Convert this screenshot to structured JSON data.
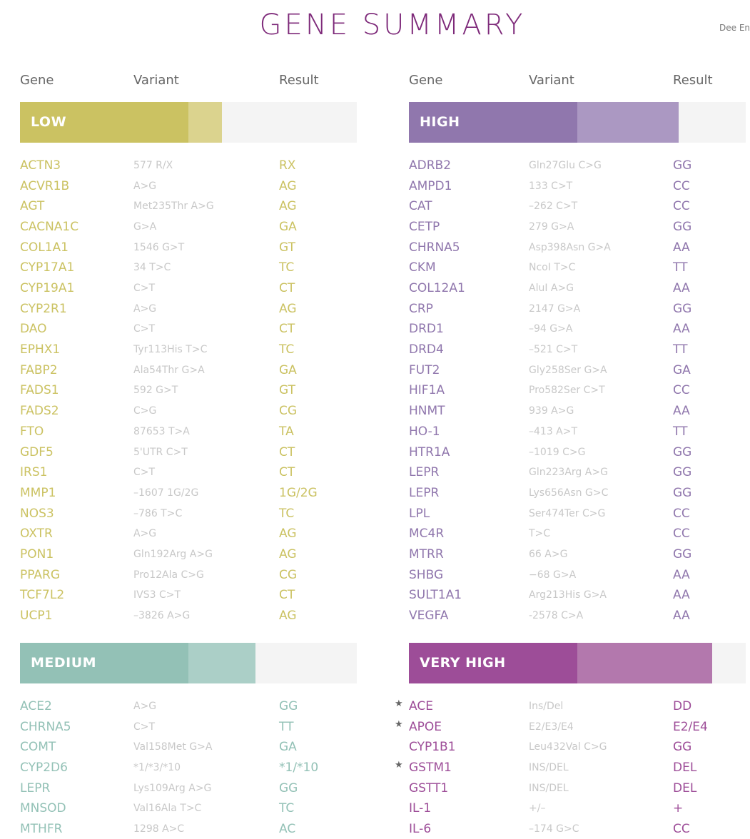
{
  "title": "GENE SUMMARY",
  "author": "Dee En",
  "headers": {
    "gene": "Gene",
    "variant": "Variant",
    "result": "Result"
  },
  "sections": [
    {
      "key": "low",
      "label": "LOW",
      "color": "#cbc262",
      "light": "#dbd38e",
      "level": 0.5,
      "level_light": 0.6,
      "rows": [
        [
          "ACTN3",
          "577 R/X",
          "RX"
        ],
        [
          "ACVR1B",
          "A>G",
          "AG"
        ],
        [
          "AGT",
          "Met235Thr A>G",
          "AG"
        ],
        [
          "CACNA1C",
          "G>A",
          "GA"
        ],
        [
          "COL1A1",
          "1546 G>T",
          "GT"
        ],
        [
          "CYP17A1",
          "34 T>C",
          "TC"
        ],
        [
          "CYP19A1",
          "C>T",
          "CT"
        ],
        [
          "CYP2R1",
          "A>G",
          "AG"
        ],
        [
          "DAO",
          "C>T",
          "CT"
        ],
        [
          "EPHX1",
          "Tyr113His T>C",
          "TC"
        ],
        [
          "FABP2",
          "Ala54Thr G>A",
          "GA"
        ],
        [
          "FADS1",
          "592 G>T",
          "GT"
        ],
        [
          "FADS2",
          "C>G",
          "CG"
        ],
        [
          "FTO",
          "87653 T>A",
          "TA"
        ],
        [
          "GDF5",
          "5'UTR C>T",
          "CT"
        ],
        [
          "IRS1",
          "C>T",
          "CT"
        ],
        [
          "MMP1",
          "–1607 1G/2G",
          "1G/2G"
        ],
        [
          "NOS3",
          "–786 T>C",
          "TC"
        ],
        [
          "OXTR",
          "A>G",
          "AG"
        ],
        [
          "PON1",
          "Gln192Arg A>G",
          "AG"
        ],
        [
          "PPARG",
          "Pro12Ala C>G",
          "CG"
        ],
        [
          "TCF7L2",
          "IVS3 C>T",
          "CT"
        ],
        [
          "UCP1",
          "–3826 A>G",
          "AG"
        ]
      ]
    },
    {
      "key": "high",
      "label": "HIGH",
      "color": "#9077ad",
      "light": "#ab98c2",
      "level": 0.5,
      "level_light": 0.8,
      "rows": [
        [
          "ADRB2",
          "Gln27Glu C>G",
          "GG"
        ],
        [
          "AMPD1",
          "133 C>T",
          "CC"
        ],
        [
          "CAT",
          "–262 C>T",
          "CC"
        ],
        [
          "CETP",
          "279 G>A",
          "GG"
        ],
        [
          "CHRNA5",
          "Asp398Asn G>A",
          "AA"
        ],
        [
          "CKM",
          "NcoI T>C",
          "TT"
        ],
        [
          "COL12A1",
          "AluI A>G",
          "AA"
        ],
        [
          "CRP",
          "2147 G>A",
          "GG"
        ],
        [
          "DRD1",
          "–94 G>A",
          "AA"
        ],
        [
          "DRD4",
          "–521 C>T",
          "TT"
        ],
        [
          "FUT2",
          "Gly258Ser G>A",
          "GA"
        ],
        [
          "HIF1A",
          "Pro582Ser C>T",
          "CC"
        ],
        [
          "HNMT",
          "939 A>G",
          "AA"
        ],
        [
          "HO-1",
          "–413 A>T",
          "TT"
        ],
        [
          "HTR1A",
          "–1019 C>G",
          "GG"
        ],
        [
          "LEPR",
          "Gln223Arg A>G",
          "GG"
        ],
        [
          "LEPR",
          "Lys656Asn G>C",
          "GG"
        ],
        [
          "LPL",
          "Ser474Ter C>G",
          "CC"
        ],
        [
          "MC4R",
          "T>C",
          "CC"
        ],
        [
          "MTRR",
          "66 A>G",
          "GG"
        ],
        [
          "SHBG",
          "−68 G>A",
          "AA"
        ],
        [
          "SULT1A1",
          "Arg213His G>A",
          "AA"
        ],
        [
          "VEGFA",
          "-2578 C>A",
          "AA"
        ]
      ]
    },
    {
      "key": "medium",
      "label": "MEDIUM",
      "color": "#93c1b6",
      "light": "#abcfc7",
      "level": 0.5,
      "level_light": 0.7,
      "rows": [
        [
          "ACE2",
          "A>G",
          "GG"
        ],
        [
          "CHRNA5",
          "C>T",
          "TT"
        ],
        [
          "COMT",
          "Val158Met G>A",
          "GA"
        ],
        [
          "CYP2D6",
          "*1/*3/*10",
          "*1/*10"
        ],
        [
          "LEPR",
          "Lys109Arg A>G",
          "GG"
        ],
        [
          "MNSOD",
          "Val16Ala T>C",
          "TC"
        ],
        [
          "MTHFR",
          "1298 A>C",
          "AC"
        ]
      ]
    },
    {
      "key": "very_high",
      "label": "VERY HIGH",
      "color": "#9d4d98",
      "light": "#b378ad",
      "level": 0.5,
      "level_light": 0.9,
      "rows": [
        [
          "ACE",
          "Ins/Del",
          "DD",
          true
        ],
        [
          "APOE",
          "E2/E3/E4",
          "E2/E4",
          true
        ],
        [
          "CYP1B1",
          "Leu432Val C>G",
          "GG",
          false
        ],
        [
          "GSTM1",
          "INS/DEL",
          "DEL",
          true
        ],
        [
          "GSTT1",
          "INS/DEL",
          "DEL",
          false
        ],
        [
          "IL-1",
          "+/–",
          "+",
          false
        ],
        [
          "IL-6",
          "–174 G>C",
          "CC",
          false
        ]
      ]
    }
  ],
  "star_glyph": "★"
}
